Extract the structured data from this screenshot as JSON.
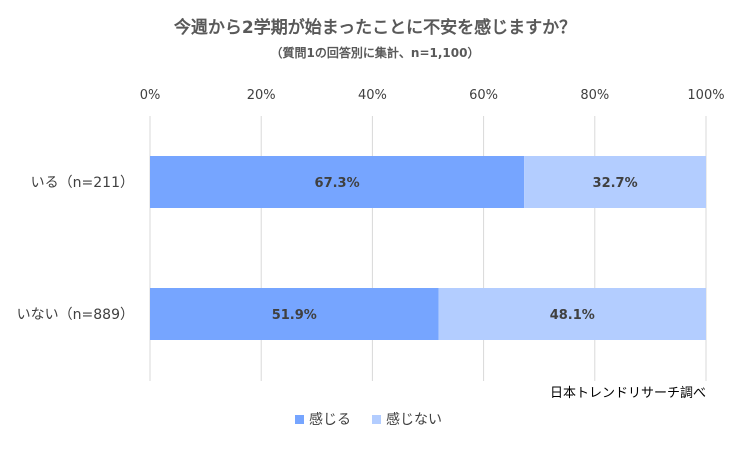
{
  "chart_data": {
    "type": "bar",
    "orientation": "horizontal",
    "stacked": true,
    "title": "今週から2学期が始まったことに不安を感じますか？",
    "subtitle": "（質問1の回答別に集計、n=1,100）",
    "categories": [
      "いる（n=211）",
      "いない（n=889）"
    ],
    "series": [
      {
        "name": "感じる",
        "values": [
          67.3,
          51.9
        ],
        "color": "#76a5ff"
      },
      {
        "name": "感じない",
        "values": [
          32.7,
          48.1
        ],
        "color": "#b3cdff"
      }
    ],
    "data_labels": [
      [
        "67.3%",
        "51.9%"
      ],
      [
        "32.7%",
        "48.1%"
      ]
    ],
    "x_ticks": [
      "0%",
      "20%",
      "40%",
      "60%",
      "80%",
      "100%"
    ],
    "xlim": [
      0,
      100
    ],
    "grid": true,
    "legend_position": "bottom",
    "source": "日本トレンドリサーチ調べ"
  }
}
